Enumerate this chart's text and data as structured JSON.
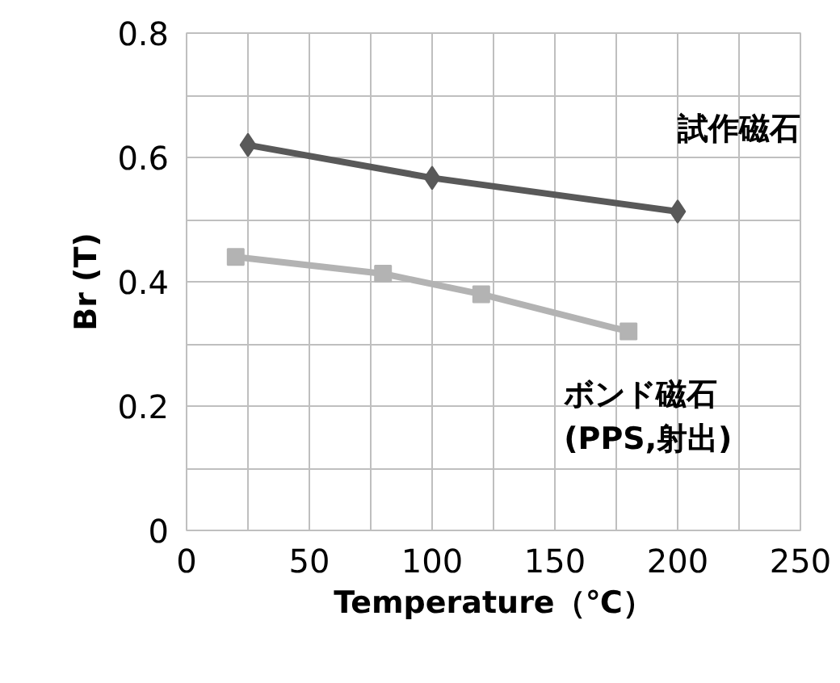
{
  "chart_data": {
    "type": "line",
    "xlabel": "Temperature（℃）",
    "ylabel": "Br (T)",
    "series": [
      {
        "name": "試作磁石",
        "color": "#595959",
        "marker": "diamond",
        "x": [
          25,
          100,
          200
        ],
        "values": [
          0.62,
          0.567,
          0.513
        ]
      },
      {
        "name": "ボンド磁石\n(PPS,射出)",
        "color": "#b3b3b3",
        "marker": "square",
        "x": [
          20,
          80,
          120,
          180
        ],
        "values": [
          0.44,
          0.413,
          0.38,
          0.32
        ]
      }
    ],
    "xlim": [
      0,
      250
    ],
    "xticks": [
      0,
      {
        "value": 25,
        "label": null
      },
      50,
      {
        "value": 75,
        "label": null
      },
      100,
      {
        "value": 125,
        "label": null
      },
      150,
      {
        "value": 175,
        "label": null
      },
      200,
      {
        "value": 225,
        "label": null
      },
      250
    ],
    "ylim": [
      0,
      0.8
    ],
    "yticks": [
      0,
      {
        "value": 0.1,
        "label": null
      },
      0.2,
      {
        "value": 0.3,
        "label": null
      },
      0.4,
      {
        "value": 0.5,
        "label": null
      },
      0.6,
      {
        "value": 0.7,
        "label": null
      },
      0.8
    ],
    "grid": true
  }
}
